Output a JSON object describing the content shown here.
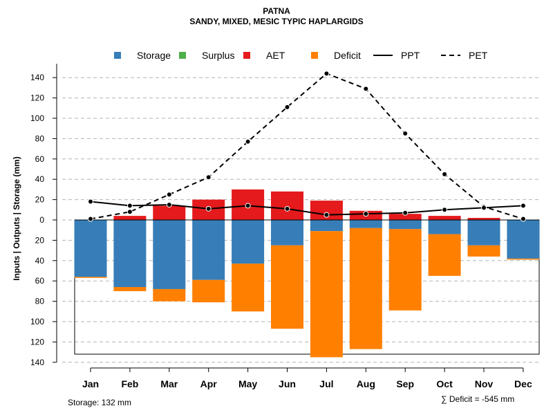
{
  "chart_data": {
    "type": "bar",
    "title": "PATNA",
    "subtitle": "SANDY, MIXED, MESIC TYPIC HAPLARGIDS",
    "ylabel": "Inputs | Outputs | Storage    (mm)",
    "xlabel": "",
    "categories": [
      "Jan",
      "Feb",
      "Mar",
      "Apr",
      "May",
      "Jun",
      "Jul",
      "Aug",
      "Sep",
      "Oct",
      "Nov",
      "Dec"
    ],
    "ylim": [
      -140,
      150
    ],
    "yticks": [
      140,
      120,
      100,
      80,
      60,
      40,
      20,
      0,
      -20,
      -40,
      -60,
      -80,
      -100,
      -120,
      -140
    ],
    "ytick_labels": [
      "140",
      "120",
      "100",
      "80",
      "60",
      "40",
      "20",
      "0",
      "20",
      "40",
      "60",
      "80",
      "100",
      "120",
      "140"
    ],
    "grid": true,
    "legend": [
      {
        "key": "storage",
        "label": "Storage",
        "type": "square",
        "color": "#377EB8"
      },
      {
        "key": "surplus",
        "label": "Surplus",
        "type": "square",
        "color": "#4DAF4A"
      },
      {
        "key": "aet",
        "label": "AET",
        "type": "square",
        "color": "#E41A1C"
      },
      {
        "key": "deficit",
        "label": "Deficit",
        "type": "square",
        "color": "#FF7F00"
      },
      {
        "key": "ppt",
        "label": "PPT",
        "type": "solid-line",
        "color": "#000000"
      },
      {
        "key": "pet",
        "label": "PET",
        "type": "dashed-line",
        "color": "#000000"
      }
    ],
    "series": [
      {
        "name": "Storage",
        "color": "#377EB8",
        "values": [
          56,
          66,
          68,
          59,
          43,
          25,
          11,
          8,
          9,
          14,
          25,
          38
        ]
      },
      {
        "name": "Surplus",
        "color": "#4DAF4A",
        "values": [
          0,
          0,
          0,
          0,
          0,
          0,
          0,
          0,
          0,
          0,
          0,
          0
        ]
      },
      {
        "name": "AET",
        "color": "#E41A1C",
        "values": [
          0,
          4,
          14,
          20,
          30,
          28,
          19,
          9,
          6,
          4,
          2,
          0
        ]
      },
      {
        "name": "Deficit",
        "color": "#FF7F00",
        "values": [
          1,
          4,
          12,
          22,
          47,
          82,
          124,
          119,
          80,
          41,
          11,
          1
        ]
      },
      {
        "name": "PPT",
        "color": "#000000",
        "values": [
          18,
          14,
          15,
          11,
          14,
          11,
          5,
          6,
          7,
          10,
          12,
          14
        ]
      },
      {
        "name": "PET",
        "color": "#000000",
        "values": [
          1,
          8,
          25,
          42,
          77,
          111,
          144,
          129,
          85,
          45,
          13,
          1
        ]
      }
    ],
    "storage_capacity": 132,
    "storage_label": "Storage: 132 mm",
    "deficit_label": "∑ Deficit = -545 mm"
  }
}
